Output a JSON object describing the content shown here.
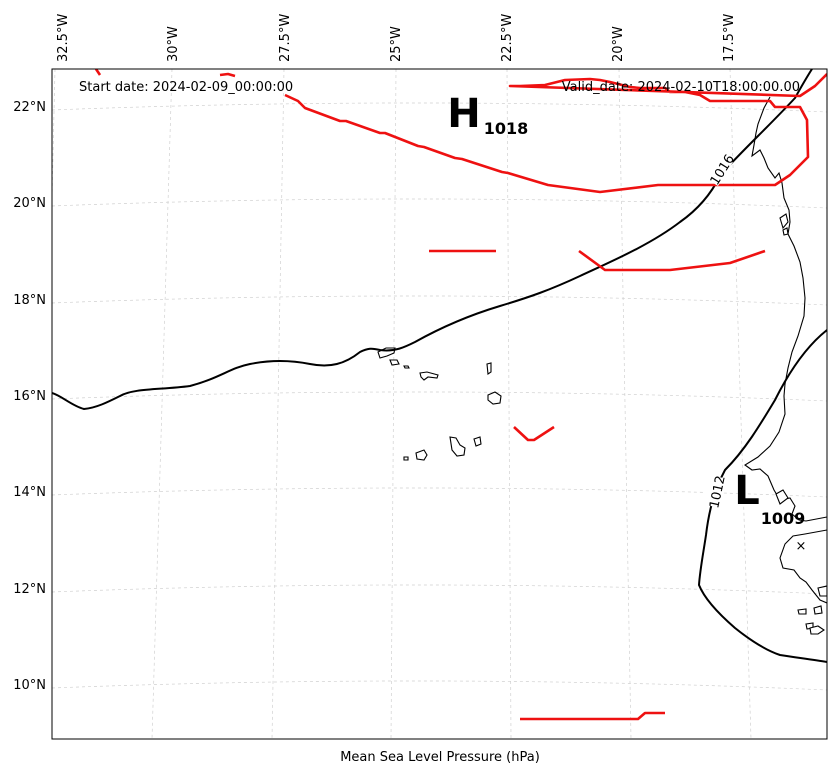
{
  "map": {
    "start_date": "Start date: 2024-02-09_00:00:00",
    "valid_date": "Valid_date: 2024-02-10T18:00:00.00",
    "caption": "Mean Sea Level Pressure (hPa)",
    "lon_labels": [
      "32.5°W",
      "30°W",
      "27.5°W",
      "25°W",
      "22.5°W",
      "20°W",
      "17.5°W"
    ],
    "lat_labels": [
      "22°N",
      "20°N",
      "18°N",
      "16°N",
      "14°N",
      "12°N",
      "10°N"
    ],
    "isobar_labels": [
      "1016",
      "1012"
    ],
    "high": {
      "letter": "H",
      "value": "1018"
    },
    "low": {
      "letter": "L",
      "value": "1009"
    },
    "low_center_marker": "×",
    "front_color": "#ee1111",
    "isobar_color": "#000000",
    "gridlines": true
  }
}
